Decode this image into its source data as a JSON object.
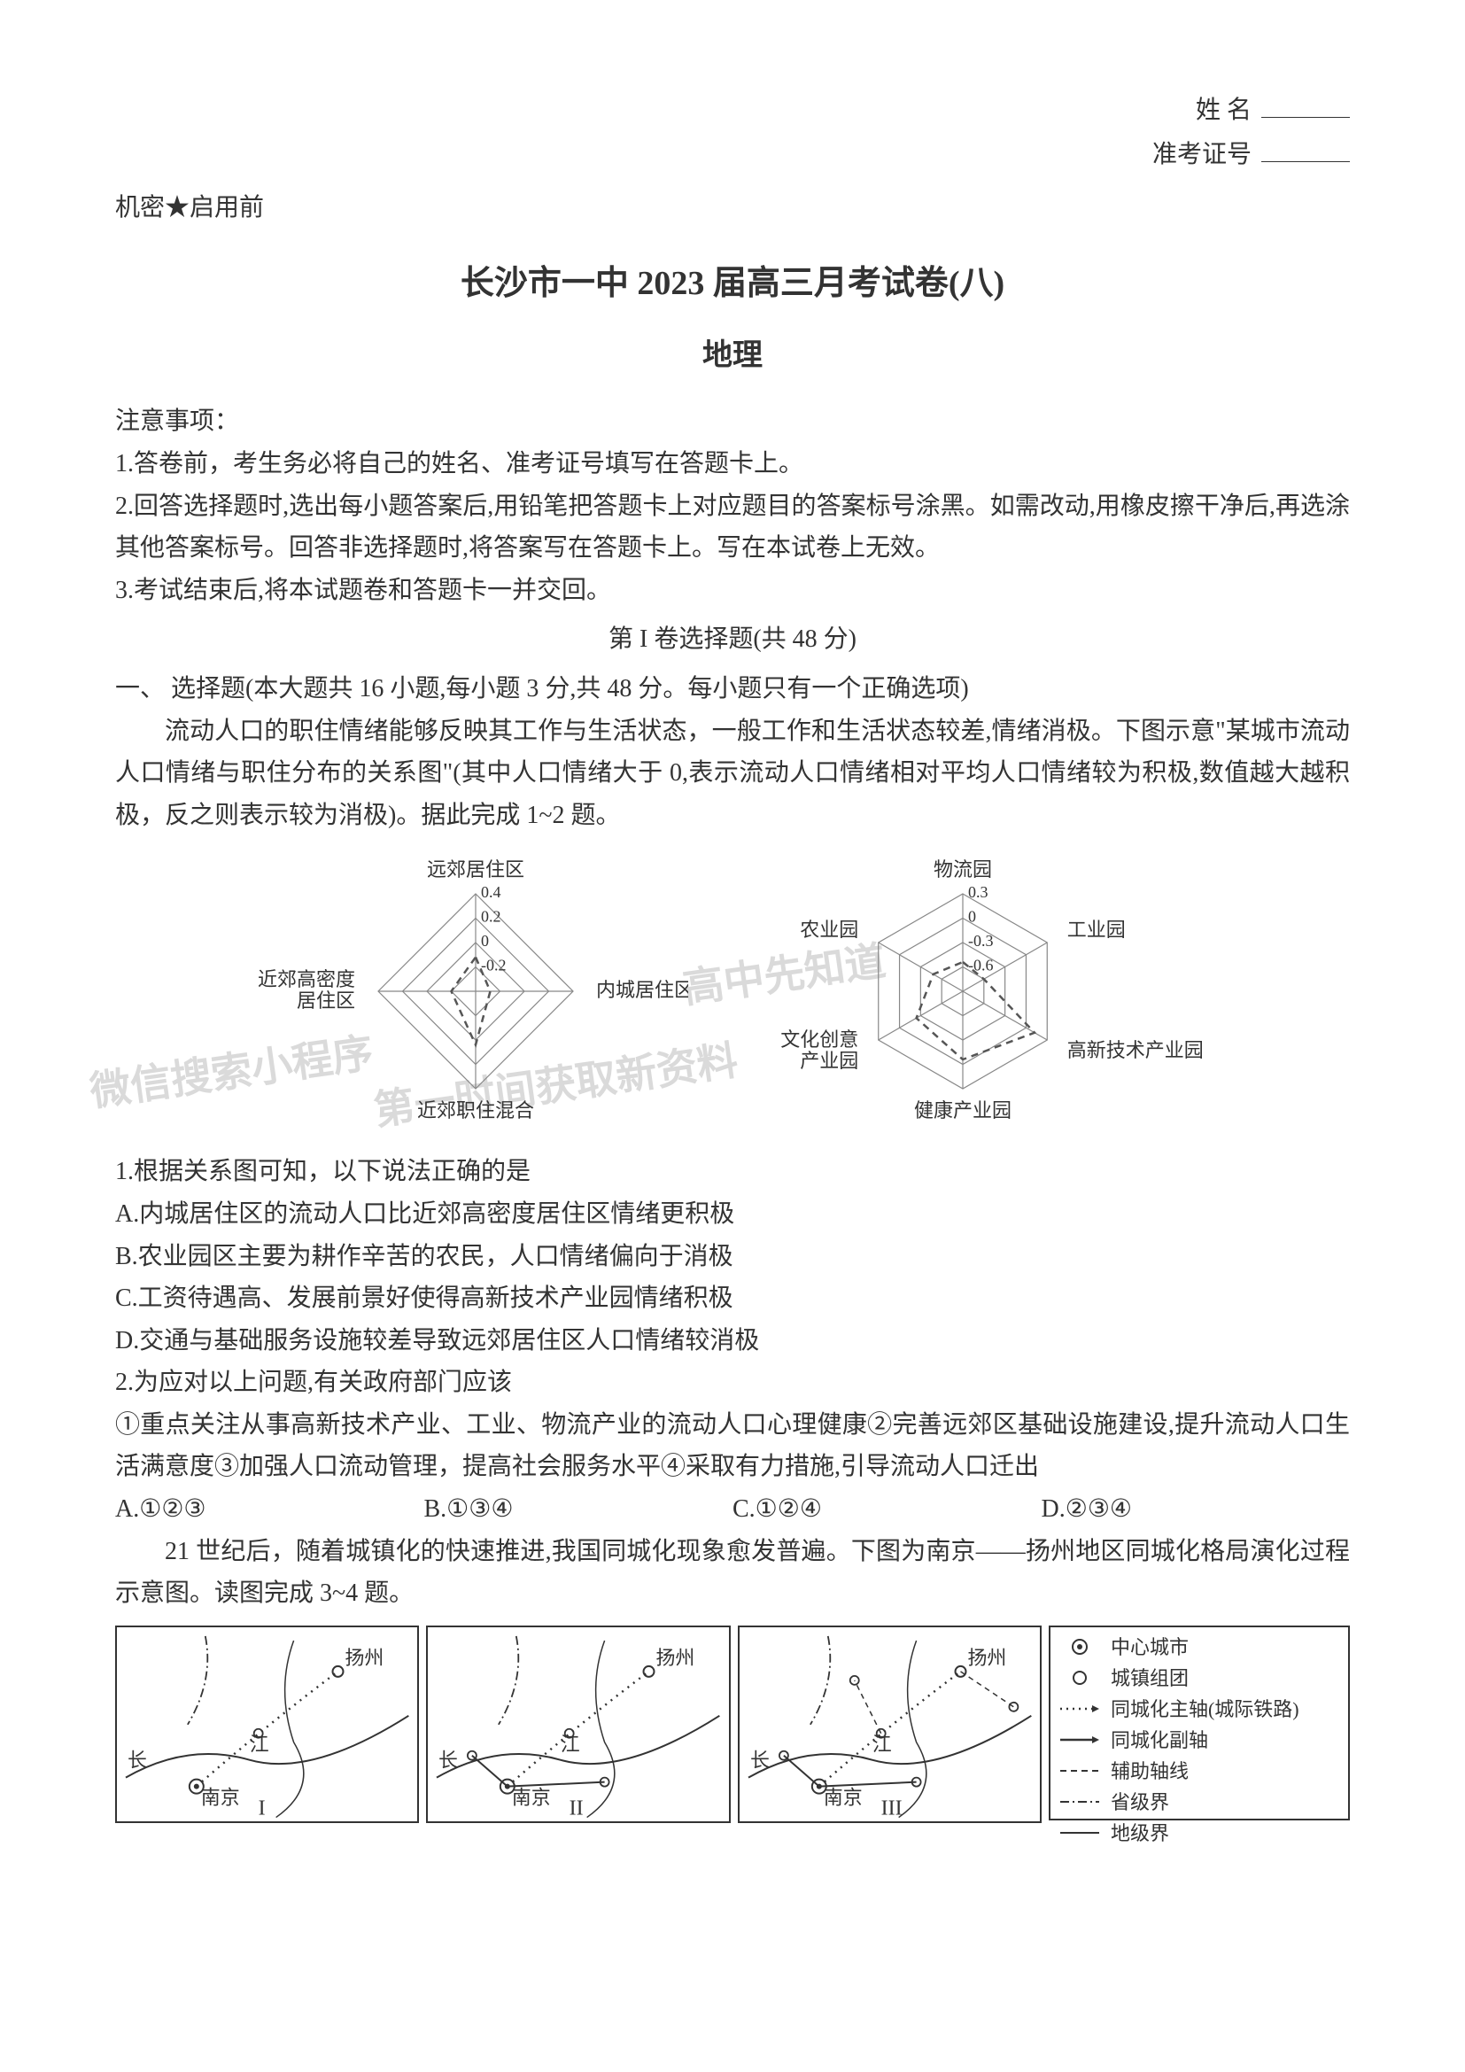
{
  "header": {
    "name_label": "姓    名",
    "exam_id_label": "准考证号"
  },
  "confidential": "机密★启用前",
  "main_title": "长沙市一中 2023 届高三月考试卷(八)",
  "subject": "地理",
  "notice_head": "注意事项：",
  "notice_1": "1.答卷前，考生务必将自己的姓名、准考证号填写在答题卡上。",
  "notice_2": "2.回答选择题时,选出每小题答案后,用铅笔把答题卡上对应题目的答案标号涂黑。如需改动,用橡皮擦干净后,再选涂其他答案标号。回答非选择题时,将答案写在答题卡上。写在本试卷上无效。",
  "notice_3": "3.考试结束后,将本试题卷和答题卡一并交回。",
  "part1_title": "第 I 卷选择题(共 48 分)",
  "part1_desc": "一、 选择题(本大题共 16 小题,每小题 3 分,共 48 分。每小题只有一个正确选项)",
  "passage1_p1": "流动人口的职住情绪能够反映其工作与生活状态，一般工作和生活状态较差,情绪消极。下图示意\"某城市流动人口情绪与职住分布的关系图\"(其中人口情绪大于 0,表示流动人口情绪相对平均人口情绪较为积极,数值越大越积极，反之则表示较为消极)。据此完成 1~2 题。",
  "radar_left": {
    "labels": [
      "远郊居住区",
      "内城居住区",
      "近郊职住混合",
      "近郊高密度\n居住区"
    ],
    "ticks": [
      "0.4",
      "0.2",
      "0",
      "-0.2"
    ],
    "grid_color": "#888888",
    "data_color": "#555555",
    "size": 360
  },
  "radar_right": {
    "labels": [
      "物流园",
      "工业园",
      "高新技术产业园",
      "健康产业园",
      "文化创意\n产业园",
      "农业园"
    ],
    "ticks": [
      "0.3",
      "0",
      "-0.3",
      "-0.6"
    ],
    "grid_color": "#888888",
    "data_color": "#555555",
    "size": 400
  },
  "watermarks": {
    "wm1": "高中先知道",
    "wm2": "微信搜索小程序",
    "wm3": "第一时间获取新资料"
  },
  "q1": {
    "stem": "1.根据关系图可知，以下说法正确的是",
    "A": "A.内城居住区的流动人口比近郊高密度居住区情绪更积极",
    "B": "B.农业园区主要为耕作辛苦的农民，人口情绪偏向于消极",
    "C": "C.工资待遇高、发展前景好使得高新技术产业园情绪积极",
    "D": "D.交通与基础服务设施较差导致远郊居住区人口情绪较消极"
  },
  "q2": {
    "stem": "2.为应对以上问题,有关政府部门应该",
    "items": "①重点关注从事高新技术产业、工业、物流产业的流动人口心理健康②完善远郊区基础设施建设,提升流动人口生活满意度③加强人口流动管理，提高社会服务水平④采取有力措施,引导流动人口迁出",
    "A": "A.①②③",
    "B": "B.①③④",
    "C": "C.①②④",
    "D": "D.②③④"
  },
  "passage2": "21 世纪后，随着城镇化的快速推进,我国同城化现象愈发普遍。下图为南京——扬州地区同城化格局演化过程示意图。读图完成 3~4 题。",
  "maps": {
    "cities": {
      "yangzhou": "扬州",
      "nanjing": "南京",
      "chang": "长",
      "jiang": "江"
    },
    "roman": [
      "I",
      "II",
      "III"
    ],
    "legend": [
      {
        "sym": "center-dot",
        "label": "中心城市"
      },
      {
        "sym": "open-circle",
        "label": "城镇组团"
      },
      {
        "sym": "dot-arrow",
        "label": "同城化主轴(城际铁路)"
      },
      {
        "sym": "solid-arrow",
        "label": "同城化副轴"
      },
      {
        "sym": "dash-line",
        "label": "辅助轴线"
      },
      {
        "sym": "dashdot",
        "label": "省级界"
      },
      {
        "sym": "solid-line",
        "label": "地级界"
      }
    ],
    "border_color": "#333333"
  }
}
